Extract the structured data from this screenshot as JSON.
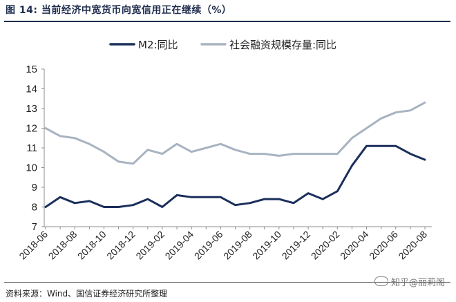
{
  "figure": {
    "title": "图 14:  当前经济中宽货币向宽信用正在继续（%）",
    "source": "资料来源：Wind、国信证券经济研究所整理",
    "watermark": "知乎@丽莉阁"
  },
  "chart_data": {
    "type": "line",
    "title": "",
    "xlabel": "",
    "ylabel": "",
    "ylim": [
      7,
      15
    ],
    "yticks": [
      "7",
      "8",
      "9",
      "10",
      "11",
      "12",
      "13",
      "14",
      "15"
    ],
    "x_tick_labels": [
      "2018-06",
      "2018-08",
      "2018-10",
      "2018-12",
      "2019-02",
      "2019-04",
      "2019-06",
      "2019-08",
      "2019-10",
      "2019-12",
      "2020-02",
      "2020-04",
      "2020-06",
      "2020-08"
    ],
    "x": [
      "2018-06",
      "2018-07",
      "2018-08",
      "2018-09",
      "2018-10",
      "2018-11",
      "2018-12",
      "2019-01",
      "2019-02",
      "2019-03",
      "2019-04",
      "2019-05",
      "2019-06",
      "2019-07",
      "2019-08",
      "2019-09",
      "2019-10",
      "2019-11",
      "2019-12",
      "2020-01",
      "2020-02",
      "2020-03",
      "2020-04",
      "2020-05",
      "2020-06",
      "2020-07",
      "2020-08"
    ],
    "grid": false,
    "legend_position": "top",
    "series": [
      {
        "name": "M2:同比",
        "color": "#1b2f5c",
        "values": [
          8.0,
          8.5,
          8.2,
          8.3,
          8.0,
          8.0,
          8.1,
          8.4,
          8.0,
          8.6,
          8.5,
          8.5,
          8.5,
          8.1,
          8.2,
          8.4,
          8.4,
          8.2,
          8.7,
          8.4,
          8.8,
          10.1,
          11.1,
          11.1,
          11.1,
          10.7,
          10.4
        ]
      },
      {
        "name": "社会融资规模存量:同比",
        "color": "#a8b3c1",
        "values": [
          12.0,
          11.6,
          11.5,
          11.2,
          10.8,
          10.3,
          10.2,
          10.9,
          10.7,
          11.2,
          10.8,
          11.0,
          11.2,
          10.9,
          10.7,
          10.7,
          10.6,
          10.7,
          10.7,
          10.7,
          10.7,
          11.5,
          12.0,
          12.5,
          12.8,
          12.9,
          13.3
        ]
      }
    ]
  }
}
